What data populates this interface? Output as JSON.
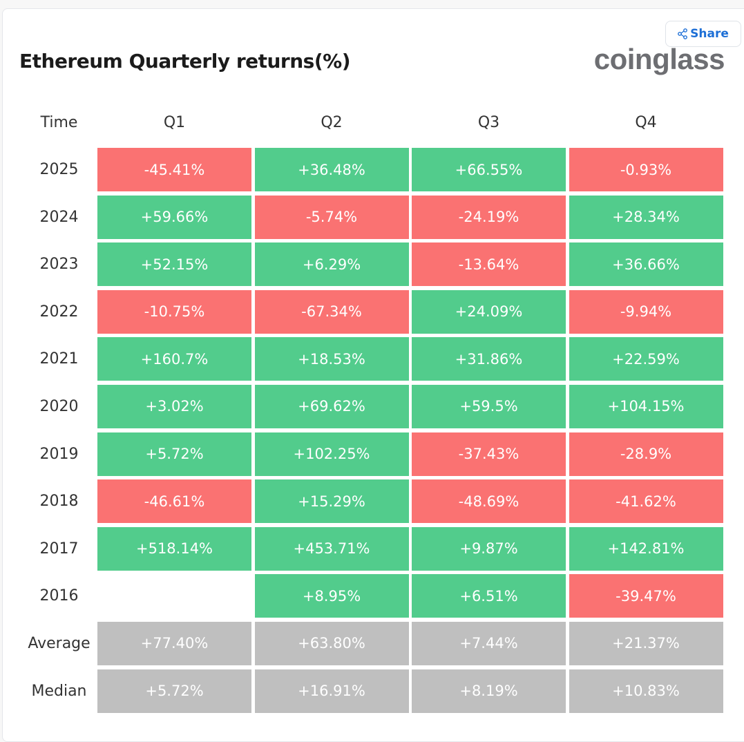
{
  "header": {
    "title": "Ethereum Quarterly returns(%)",
    "share_label": "Share",
    "logo": "coinglass"
  },
  "colors": {
    "positive": "#52cc8c",
    "negative": "#fa7272",
    "summary": "#bfbfbf"
  },
  "chart_data": {
    "type": "table",
    "title": "Ethereum Quarterly returns(%)",
    "row_header": "Time",
    "columns": [
      "Q1",
      "Q2",
      "Q3",
      "Q4"
    ],
    "rows": [
      {
        "label": "2025",
        "values": [
          "-45.41%",
          "+36.48%",
          "+66.55%",
          "-0.93%"
        ]
      },
      {
        "label": "2024",
        "values": [
          "+59.66%",
          "-5.74%",
          "-24.19%",
          "+28.34%"
        ]
      },
      {
        "label": "2023",
        "values": [
          "+52.15%",
          "+6.29%",
          "-13.64%",
          "+36.66%"
        ]
      },
      {
        "label": "2022",
        "values": [
          "-10.75%",
          "-67.34%",
          "+24.09%",
          "-9.94%"
        ]
      },
      {
        "label": "2021",
        "values": [
          "+160.7%",
          "+18.53%",
          "+31.86%",
          "+22.59%"
        ]
      },
      {
        "label": "2020",
        "values": [
          "+3.02%",
          "+69.62%",
          "+59.5%",
          "+104.15%"
        ]
      },
      {
        "label": "2019",
        "values": [
          "+5.72%",
          "+102.25%",
          "-37.43%",
          "-28.9%"
        ]
      },
      {
        "label": "2018",
        "values": [
          "-46.61%",
          "+15.29%",
          "-48.69%",
          "-41.62%"
        ]
      },
      {
        "label": "2017",
        "values": [
          "+518.14%",
          "+453.71%",
          "+9.87%",
          "+142.81%"
        ]
      },
      {
        "label": "2016",
        "values": [
          "",
          "+8.95%",
          "+6.51%",
          "-39.47%"
        ]
      }
    ],
    "summary": [
      {
        "label": "Average",
        "values": [
          "+77.40%",
          "+63.80%",
          "+7.44%",
          "+21.37%"
        ]
      },
      {
        "label": "Median",
        "values": [
          "+5.72%",
          "+16.91%",
          "+8.19%",
          "+10.83%"
        ]
      }
    ]
  }
}
